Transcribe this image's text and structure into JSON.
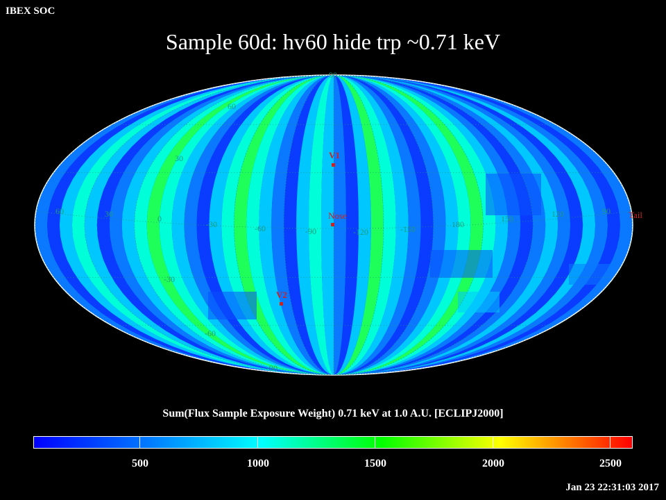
{
  "header": {
    "soc_label": "IBEX SOC",
    "title": "Sample 60d: hv60 hide trp ~0.71 keV"
  },
  "map": {
    "projection": "Mollweide (ecliptic J2000)",
    "latitude_labels": [
      "90",
      "60",
      "30",
      "-30",
      "-60",
      "-90"
    ],
    "longitude_labels": [
      "60",
      "30",
      "0",
      "-30",
      "-60",
      "-90",
      "-120",
      "-150",
      "180",
      "150",
      "120",
      "90"
    ],
    "markers": [
      {
        "label": "V1"
      },
      {
        "label": "Nose"
      },
      {
        "label": "V2"
      },
      {
        "label": "Tail"
      }
    ]
  },
  "colorbar": {
    "label": "Sum(Flux Sample Exposure Weight)  0.71 keV at 1.0 A.U. [ECLIPJ2000]",
    "min": 0,
    "max": 2550,
    "tick_labels": [
      "500",
      "1000",
      "1500",
      "2000",
      "2500"
    ],
    "colors": [
      "#0000ff",
      "#00ffff",
      "#00ff00",
      "#ffff00",
      "#ff0000"
    ]
  },
  "footer": {
    "timestamp": "Jan 23 22:31:03 2017"
  },
  "colors": {
    "background": "#000000",
    "text": "#ffffff",
    "grid_label": "#1f9a7a",
    "marker": "#cc2222"
  }
}
